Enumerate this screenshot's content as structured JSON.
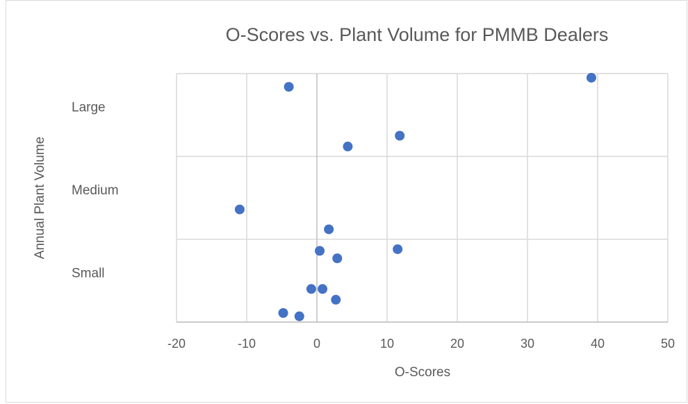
{
  "chart_data": {
    "type": "scatter",
    "title": "O-Scores vs. Plant Volume for PMMB Dealers",
    "x_label": "O-Scores",
    "y_label": "Annual Plant Volume",
    "categories": [
      "Small",
      "Medium",
      "Large"
    ],
    "color": "#4472c4",
    "x": [
      39.1,
      -4.0,
      11.8,
      4.4,
      -11.0,
      1.7,
      11.5,
      0.4,
      2.9,
      -0.8,
      0.8,
      2.7,
      -4.8,
      -2.5
    ],
    "values": [
      2.95,
      2.84,
      2.25,
      2.12,
      1.36,
      1.12,
      0.88,
      0.86,
      0.77,
      0.4,
      0.4,
      0.27,
      0.11,
      0.07
    ],
    "xlim": [
      -20,
      50
    ],
    "xticks": [
      -20,
      -10,
      0,
      10,
      20,
      30,
      40,
      50
    ],
    "ylim": [
      0,
      3
    ],
    "yticks": [
      0,
      1,
      2,
      3
    ],
    "grid": true
  }
}
